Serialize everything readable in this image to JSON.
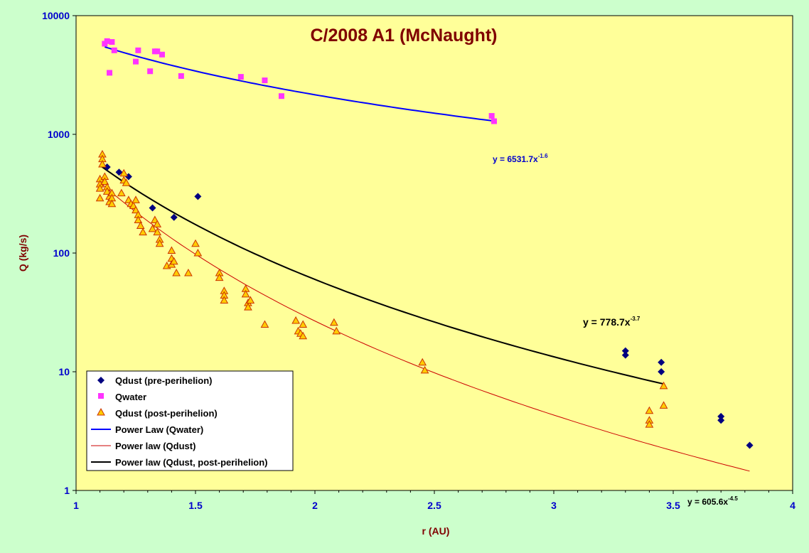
{
  "chart_data": {
    "type": "scatter",
    "title": "C/2008 A1 (McNaught)",
    "xlabel": "r (AU)",
    "ylabel": "Q (kg/s)",
    "xlim": [
      1,
      4
    ],
    "ylim": [
      1,
      10000
    ],
    "yscale": "log",
    "grid": false,
    "legend_position": "bottom-left",
    "x_tick_labels": [
      "1",
      "1.5",
      "2",
      "2.5",
      "3",
      "3.5",
      "4"
    ],
    "y_tick_labels": [
      "1",
      "10",
      "100",
      "1000",
      "10000"
    ],
    "colors": {
      "plot_background": "#ffff99",
      "outer_background": "#ccffcc",
      "title": "#800000",
      "ticks": "#0000cc",
      "dust_pre": "#000080",
      "water": "#ff33ff",
      "dust_post_fill": "#ffcc00",
      "dust_post_edge": "#cc3300",
      "fit_water": "#0000ff",
      "fit_dust": "#cc0000",
      "fit_dust_post": "#000000"
    },
    "series": [
      {
        "name": "Qdust (pre-perihelion)",
        "marker": "diamond",
        "points": [
          [
            1.13,
            530
          ],
          [
            1.18,
            480
          ],
          [
            1.22,
            440
          ],
          [
            1.32,
            240
          ],
          [
            1.41,
            200
          ],
          [
            1.51,
            300
          ],
          [
            3.3,
            15
          ],
          [
            3.3,
            13.8
          ],
          [
            3.45,
            12
          ],
          [
            3.45,
            10
          ],
          [
            3.7,
            4.2
          ],
          [
            3.7,
            3.9
          ],
          [
            3.82,
            2.4
          ]
        ]
      },
      {
        "name": "Qwater",
        "marker": "square",
        "points": [
          [
            1.12,
            5800
          ],
          [
            1.13,
            6100
          ],
          [
            1.14,
            3300
          ],
          [
            1.15,
            6000
          ],
          [
            1.16,
            5100
          ],
          [
            1.25,
            4100
          ],
          [
            1.26,
            5100
          ],
          [
            1.31,
            3400
          ],
          [
            1.33,
            5000
          ],
          [
            1.34,
            5000
          ],
          [
            1.36,
            4700
          ],
          [
            1.44,
            3100
          ],
          [
            1.69,
            3050
          ],
          [
            1.79,
            2850
          ],
          [
            1.86,
            2100
          ],
          [
            2.74,
            1430
          ],
          [
            2.75,
            1290
          ]
        ]
      },
      {
        "name": "Qdust (post-perihelion)",
        "marker": "triangle",
        "points": [
          [
            1.1,
            420
          ],
          [
            1.1,
            380
          ],
          [
            1.1,
            350
          ],
          [
            1.1,
            290
          ],
          [
            1.11,
            680
          ],
          [
            1.11,
            620
          ],
          [
            1.11,
            560
          ],
          [
            1.12,
            440
          ],
          [
            1.12,
            400
          ],
          [
            1.13,
            360
          ],
          [
            1.13,
            330
          ],
          [
            1.14,
            300
          ],
          [
            1.14,
            270
          ],
          [
            1.15,
            320
          ],
          [
            1.15,
            290
          ],
          [
            1.15,
            260
          ],
          [
            1.19,
            320
          ],
          [
            1.2,
            470
          ],
          [
            1.2,
            410
          ],
          [
            1.21,
            390
          ],
          [
            1.22,
            280
          ],
          [
            1.23,
            260
          ],
          [
            1.24,
            250
          ],
          [
            1.25,
            280
          ],
          [
            1.25,
            230
          ],
          [
            1.26,
            210
          ],
          [
            1.26,
            190
          ],
          [
            1.27,
            170
          ],
          [
            1.28,
            150
          ],
          [
            1.32,
            160
          ],
          [
            1.33,
            190
          ],
          [
            1.34,
            175
          ],
          [
            1.34,
            150
          ],
          [
            1.35,
            130
          ],
          [
            1.35,
            120
          ],
          [
            1.38,
            78
          ],
          [
            1.4,
            105
          ],
          [
            1.4,
            90
          ],
          [
            1.4,
            80
          ],
          [
            1.41,
            85
          ],
          [
            1.42,
            68
          ],
          [
            1.47,
            68
          ],
          [
            1.5,
            120
          ],
          [
            1.51,
            100
          ],
          [
            1.6,
            68
          ],
          [
            1.6,
            62
          ],
          [
            1.62,
            48
          ],
          [
            1.62,
            44
          ],
          [
            1.62,
            40
          ],
          [
            1.71,
            50
          ],
          [
            1.71,
            45
          ],
          [
            1.72,
            38
          ],
          [
            1.72,
            35
          ],
          [
            1.73,
            40
          ],
          [
            1.79,
            25
          ],
          [
            1.92,
            27
          ],
          [
            1.93,
            22
          ],
          [
            1.94,
            21
          ],
          [
            1.95,
            20
          ],
          [
            1.95,
            25
          ],
          [
            2.08,
            26
          ],
          [
            2.09,
            22
          ],
          [
            2.45,
            12
          ],
          [
            2.46,
            10.3
          ],
          [
            3.4,
            4.7
          ],
          [
            3.4,
            3.9
          ],
          [
            3.4,
            3.6
          ],
          [
            3.46,
            7.6
          ],
          [
            3.46,
            5.2
          ]
        ]
      },
      {
        "name": "Power Law (Qwater)",
        "type": "fit",
        "equation": "y = 6531.7x",
        "exponent": "-1.6",
        "coefficient": 6531.7,
        "power": -1.6,
        "x_range": [
          1.12,
          2.75
        ]
      },
      {
        "name": "Power law (Qdust)",
        "type": "fit",
        "equation": "y = 605.6x",
        "exponent": "-4.5",
        "coefficient": 605.6,
        "power": -4.5,
        "x_range": [
          1.1,
          3.82
        ]
      },
      {
        "name": "Power law (Qdust, post-perihelion)",
        "type": "fit",
        "equation": "y = 778.7x",
        "exponent": "-3.7",
        "coefficient": 778.7,
        "power": -3.7,
        "x_range": [
          1.1,
          3.46
        ]
      }
    ]
  }
}
